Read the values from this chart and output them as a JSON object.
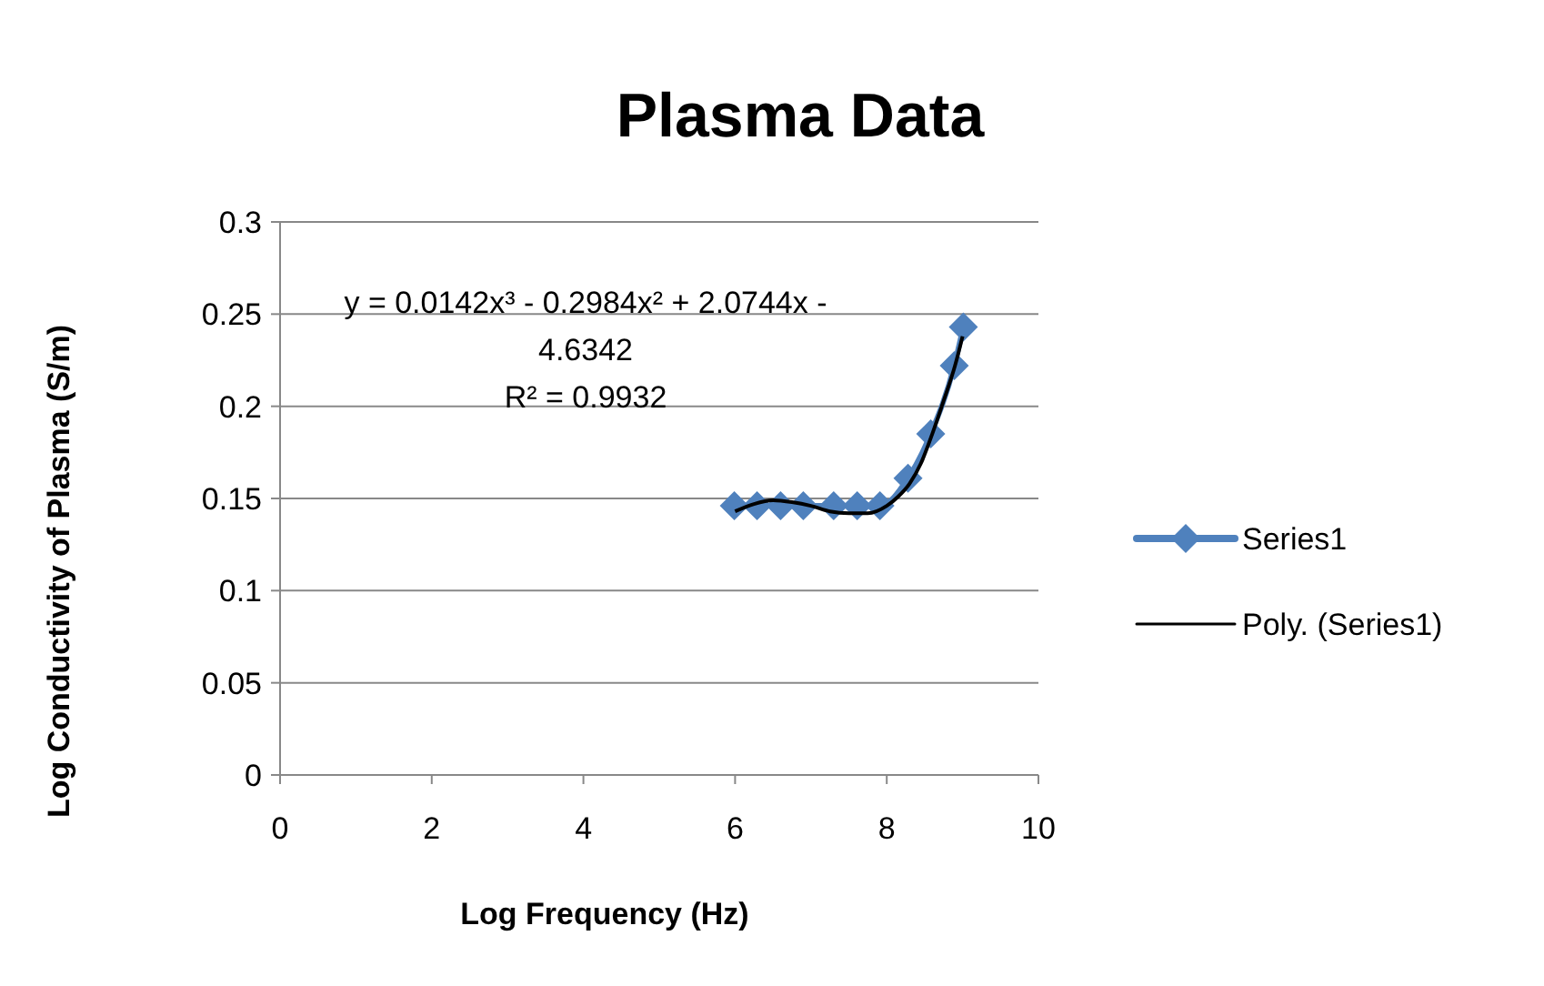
{
  "chart_data": {
    "type": "line",
    "title": "Plasma Data",
    "xlabel": "Log Frequency (Hz)",
    "ylabel": "Log Conductivity of Plasma (S/m)",
    "xlim": [
      0,
      10
    ],
    "xticks": [
      0,
      2,
      4,
      6,
      8,
      10
    ],
    "ylim": [
      0,
      0.3
    ],
    "yticks": [
      0,
      0.05,
      0.1,
      0.15,
      0.2,
      0.25,
      0.3
    ],
    "grid": "y",
    "legend": "right",
    "annotations": [
      "y = 0.0142x³ - 0.2984x² + 2.0744x - 4.6342",
      "R² = 0.9932"
    ],
    "series": [
      {
        "name": "Series1",
        "color": "#4f81bd",
        "marker": "diamond",
        "x": [
          5.99,
          6.29,
          6.6,
          6.9,
          7.3,
          7.61,
          7.91,
          8.28,
          8.58,
          8.89,
          9.01
        ],
        "values": [
          0.146,
          0.146,
          0.146,
          0.146,
          0.146,
          0.146,
          0.146,
          0.161,
          0.185,
          0.222,
          0.243
        ]
      },
      {
        "name": "Poly. (Series1)",
        "color": "#000000",
        "marker": "none",
        "x": [
          6,
          6.25,
          6.5,
          6.75,
          7,
          7.25,
          7.5,
          7.75,
          8,
          8.15,
          8.3,
          8.45,
          8.6,
          8.75,
          8.9,
          9
        ],
        "values": [
          0.143,
          0.147,
          0.149,
          0.148,
          0.146,
          0.143,
          0.142,
          0.142,
          0.146,
          0.151,
          0.158,
          0.169,
          0.185,
          0.203,
          0.222,
          0.238
        ]
      }
    ]
  }
}
